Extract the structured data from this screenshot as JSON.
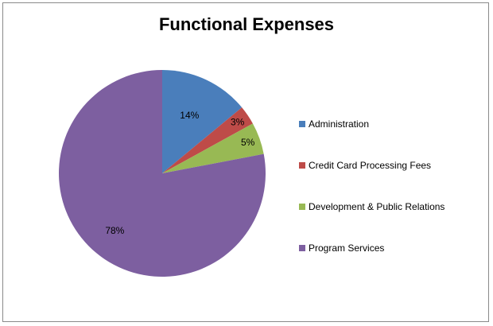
{
  "chart_data": {
    "type": "pie",
    "title": "Functional Expenses",
    "categories": [
      "Administration",
      "Credit Card Processing Fees",
      "Development & Public Relations",
      "Program Services"
    ],
    "values": [
      14,
      3,
      5,
      78
    ],
    "labels": [
      "14%",
      "3%",
      "5%",
      "78%"
    ],
    "colors": [
      "#4a7ebb",
      "#be4b48",
      "#98b954",
      "#7d5fa0"
    ],
    "legend_position": "right"
  }
}
